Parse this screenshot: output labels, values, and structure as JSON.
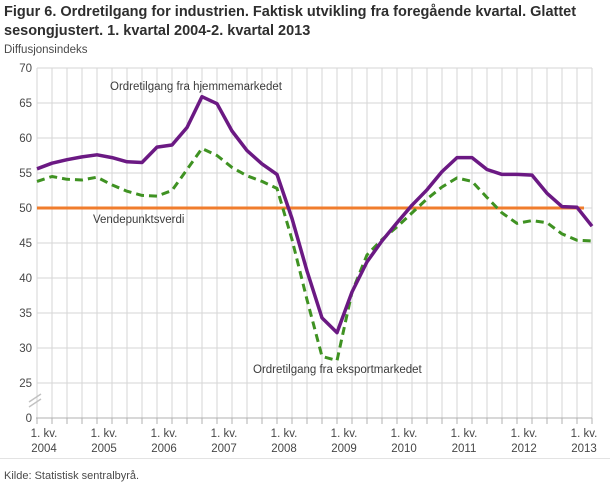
{
  "title": "Figur 6. Ordretilgang for industrien. Faktisk utvikling fra foregående kvartal. Glattet sesongjustert. 1. kvartal 2004-2. kvartal 2013",
  "subtitle": "Diffusjonsindeks",
  "source": "Kilde: Statistisk sentralbyrå.",
  "colors": {
    "home_market": "#6b1983",
    "export_market": "#3f9222",
    "reference": "#f07d2d",
    "grid": "#d6d6d6",
    "axis": "#b0b0b0"
  },
  "chart_data": {
    "type": "line",
    "title": "Figur 6. Ordretilgang for industrien. Faktisk utvikling fra foregående kvartal. Glattet sesongjustert. 1. kvartal 2004-2. kvartal 2013",
    "ylabel": "Diffusjonsindeks",
    "grid": true,
    "legend_position": "inline-annotations",
    "y_axis": {
      "ticks": [
        70,
        65,
        60,
        55,
        50,
        45,
        40,
        35,
        30,
        25
      ],
      "zero_label": "0",
      "axis_break_between_0_and_25": true,
      "ylim_displayed": [
        25,
        70
      ]
    },
    "x_tick_labels": [
      {
        "line1": "1. kv.",
        "line2": "2004"
      },
      {
        "line1": "1. kv.",
        "line2": "2005"
      },
      {
        "line1": "1. kv.",
        "line2": "2006"
      },
      {
        "line1": "1. kv.",
        "line2": "2007"
      },
      {
        "line1": "1. kv.",
        "line2": "2008"
      },
      {
        "line1": "1. kv.",
        "line2": "2009"
      },
      {
        "line1": "1. kv.",
        "line2": "2010"
      },
      {
        "line1": "1. kv.",
        "line2": "2011"
      },
      {
        "line1": "1. kv.",
        "line2": "2012"
      },
      {
        "line1": "1. kv.",
        "line2": "2013"
      }
    ],
    "quarters": [
      "1. kv. 2004",
      "2. kv. 2004",
      "3. kv. 2004",
      "4. kv. 2004",
      "1. kv. 2005",
      "2. kv. 2005",
      "3. kv. 2005",
      "4. kv. 2005",
      "1. kv. 2006",
      "2. kv. 2006",
      "3. kv. 2006",
      "4. kv. 2006",
      "1. kv. 2007",
      "2. kv. 2007",
      "3. kv. 2007",
      "4. kv. 2007",
      "1. kv. 2008",
      "2. kv. 2008",
      "3. kv. 2008",
      "4. kv. 2008",
      "1. kv. 2009",
      "2. kv. 2009",
      "3. kv. 2009",
      "4. kv. 2009",
      "1. kv. 2010",
      "2. kv. 2010",
      "3. kv. 2010",
      "4. kv. 2010",
      "1. kv. 2011",
      "2. kv. 2011",
      "3. kv. 2011",
      "4. kv. 2011",
      "1. kv. 2012",
      "2. kv. 2012",
      "3. kv. 2012",
      "4. kv. 2012",
      "1. kv. 2013",
      "2. kv. 2013"
    ],
    "reference_line": {
      "label": "Vendepunktsverdi",
      "value": 50,
      "color": "#f07d2d"
    },
    "series": [
      {
        "name": "Ordretilgang fra hjemmemarkedet",
        "color": "#6b1983",
        "style": "solid",
        "values": [
          55.6,
          56.4,
          56.9,
          57.3,
          57.6,
          57.2,
          56.6,
          56.5,
          58.7,
          59.0,
          61.5,
          65.9,
          64.9,
          61.0,
          58.2,
          56.3,
          54.8,
          48.5,
          41.0,
          34.3,
          32.2,
          38.0,
          42.3,
          45.3,
          47.9,
          50.4,
          52.6,
          55.2,
          57.2,
          57.2,
          55.5,
          54.8,
          54.8,
          54.7,
          52.1,
          50.2,
          50.1,
          47.4
        ]
      },
      {
        "name": "Ordretilgang fra eksportmarkedet",
        "color": "#3f9222",
        "style": "dashed",
        "values": [
          53.8,
          54.5,
          54.1,
          54.0,
          54.4,
          53.3,
          52.4,
          51.8,
          51.7,
          52.5,
          55.5,
          58.5,
          57.5,
          55.8,
          54.6,
          53.8,
          52.8,
          45.5,
          36.9,
          28.8,
          28.2,
          38.0,
          43.3,
          45.5,
          47.3,
          49.3,
          51.3,
          53.0,
          54.3,
          53.8,
          51.5,
          49.3,
          47.8,
          48.2,
          47.9,
          46.3,
          45.4,
          45.3
        ]
      }
    ]
  }
}
